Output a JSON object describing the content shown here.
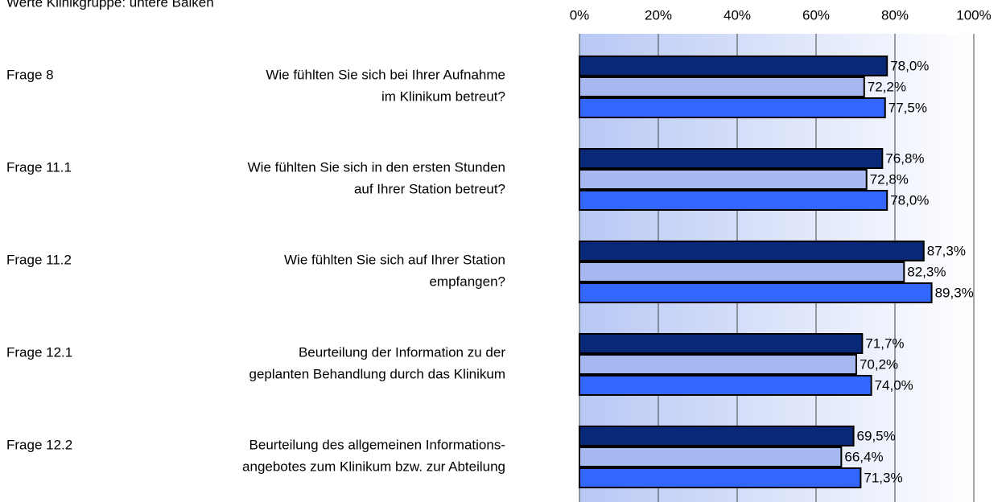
{
  "chart_data": {
    "type": "bar",
    "orientation": "horizontal",
    "subtitle": "Werte Klinikgruppe: untere Balken",
    "question_ids": [
      "Frage 8",
      "Frage 11.1",
      "Frage 11.2",
      "Frage 12.1",
      "Frage 12.2"
    ],
    "categories": [
      [
        "Wie fühlten Sie sich bei Ihrer Aufnahme",
        "im Klinikum betreut?"
      ],
      [
        "Wie fühlten Sie sich in den ersten Stunden",
        "auf Ihrer Station betreut?"
      ],
      [
        "Wie fühlten Sie sich auf Ihrer Station",
        "empfangen?"
      ],
      [
        "Beurteilung der Information zu der",
        "geplanten Behandlung durch das Klinikum"
      ],
      [
        "Beurteilung des allgemeinen Informations-",
        "angebotes zum Klinikum bzw. zur Abteilung"
      ]
    ],
    "series": [
      {
        "color": "#0a2878",
        "values": [
          78.0,
          76.8,
          87.3,
          71.7,
          69.5
        ],
        "value_labels": [
          "78,0%",
          "76,8%",
          "87,3%",
          "71,7%",
          "69,5%"
        ]
      },
      {
        "color": "#a8b8f0",
        "values": [
          72.2,
          72.8,
          82.3,
          70.2,
          66.4
        ],
        "value_labels": [
          "72,2%",
          "72,8%",
          "82,3%",
          "70,2%",
          "66,4%"
        ]
      },
      {
        "color": "#3366ff",
        "values": [
          77.5,
          78.0,
          89.3,
          74.0,
          71.3
        ],
        "value_labels": [
          "77,5%",
          "78,0%",
          "89,3%",
          "74,0%",
          "71,3%"
        ]
      }
    ],
    "xlim": [
      0,
      100
    ],
    "xticks": [
      {
        "value": 0,
        "label": "0%"
      },
      {
        "value": 20,
        "label": "20%"
      },
      {
        "value": 40,
        "label": "40%"
      },
      {
        "value": 60,
        "label": "60%"
      },
      {
        "value": 80,
        "label": "80%"
      },
      {
        "value": 100,
        "label": "100%"
      }
    ],
    "grid": true
  }
}
